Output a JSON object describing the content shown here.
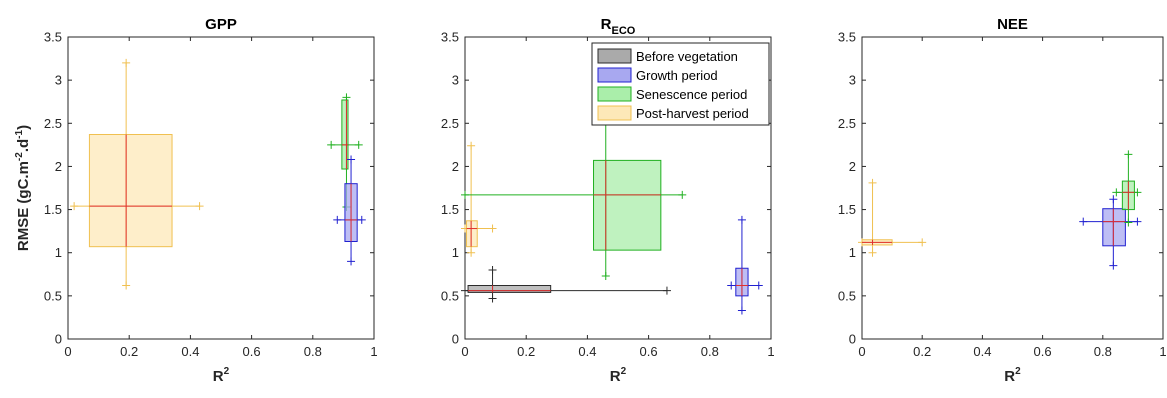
{
  "chart_data": [
    {
      "type": "box",
      "title": "GPP",
      "xlabel": "R",
      "xlabel_sup": "2",
      "ylabel": "RMSE (gC.m",
      "ylabel_sup1": "-2",
      "ylabel_mid": ".d",
      "ylabel_sup2": "-1",
      "ylabel_end": ")",
      "xlim": [
        0,
        1
      ],
      "ylim": [
        0,
        3.5
      ],
      "xticks": [
        "0",
        "0.2",
        "0.4",
        "0.6",
        "0.8",
        "1"
      ],
      "yticks": [
        "0",
        "0.5",
        "1",
        "1.5",
        "2",
        "2.5",
        "3",
        "3.5"
      ],
      "series": [
        {
          "group": "Post-harvest period",
          "x_med": 0.19,
          "y_med": 1.54,
          "x_box": [
            0.07,
            0.34
          ],
          "y_box": [
            1.07,
            2.37
          ],
          "x_whisk": [
            0.02,
            0.43
          ],
          "y_whisk": [
            0.62,
            3.2
          ]
        },
        {
          "group": "Senescence period",
          "x_med": 0.91,
          "y_med": 2.25,
          "x_box": [
            0.895,
            0.915
          ],
          "y_box": [
            1.97,
            2.77
          ],
          "x_whisk": [
            0.86,
            0.95
          ],
          "y_whisk": [
            1.53,
            2.8
          ]
        },
        {
          "group": "Growth period",
          "x_med": 0.925,
          "y_med": 1.38,
          "x_box": [
            0.905,
            0.945
          ],
          "y_box": [
            1.13,
            1.8
          ],
          "x_whisk": [
            0.88,
            0.96
          ],
          "y_whisk": [
            0.9,
            2.08
          ]
        }
      ]
    },
    {
      "type": "box",
      "title": "R",
      "title_sub": "ECO",
      "xlabel": "R",
      "xlabel_sup": "2",
      "xlim": [
        0,
        1
      ],
      "ylim": [
        0,
        3.5
      ],
      "xticks": [
        "0",
        "0.2",
        "0.4",
        "0.6",
        "0.8",
        "1"
      ],
      "yticks": [
        "0",
        "0.5",
        "1",
        "1.5",
        "2",
        "2.5",
        "3",
        "3.5"
      ],
      "series": [
        {
          "group": "Before vegetation",
          "x_med": 0.09,
          "y_med": 0.56,
          "x_box": [
            0.01,
            0.28
          ],
          "y_box": [
            0.54,
            0.62
          ],
          "x_whisk": [
            0.0,
            0.66
          ],
          "y_whisk": [
            0.47,
            0.8
          ]
        },
        {
          "group": "Post-harvest period",
          "x_med": 0.02,
          "y_med": 1.28,
          "x_box": [
            0.005,
            0.04
          ],
          "y_box": [
            1.07,
            1.37
          ],
          "x_whisk": [
            0.0,
            0.09
          ],
          "y_whisk": [
            1.0,
            2.24
          ]
        },
        {
          "group": "Senescence period",
          "x_med": 0.46,
          "y_med": 1.67,
          "x_box": [
            0.42,
            0.64
          ],
          "y_box": [
            1.03,
            2.07
          ],
          "x_whisk": [
            0.0,
            0.71
          ],
          "y_whisk": [
            0.73,
            3.16
          ]
        },
        {
          "group": "Growth period",
          "x_med": 0.905,
          "y_med": 0.62,
          "x_box": [
            0.885,
            0.925
          ],
          "y_box": [
            0.5,
            0.82
          ],
          "x_whisk": [
            0.87,
            0.96
          ],
          "y_whisk": [
            0.33,
            1.38
          ]
        }
      ]
    },
    {
      "type": "box",
      "title": "NEE",
      "xlabel": "R",
      "xlabel_sup": "2",
      "xlim": [
        0,
        1
      ],
      "ylim": [
        0,
        3.5
      ],
      "xticks": [
        "0",
        "0.2",
        "0.4",
        "0.6",
        "0.8",
        "1"
      ],
      "yticks": [
        "0",
        "0.5",
        "1",
        "1.5",
        "2",
        "2.5",
        "3",
        "3.5"
      ],
      "series": [
        {
          "group": "Post-harvest period",
          "x_med": 0.035,
          "y_med": 1.12,
          "x_box": [
            0.0,
            0.1
          ],
          "y_box": [
            1.09,
            1.15
          ],
          "x_whisk": [
            0.0,
            0.2
          ],
          "y_whisk": [
            1.0,
            1.81
          ]
        },
        {
          "group": "Growth period",
          "x_med": 0.835,
          "y_med": 1.36,
          "x_box": [
            0.8,
            0.875
          ],
          "y_box": [
            1.08,
            1.51
          ],
          "x_whisk": [
            0.735,
            0.915
          ],
          "y_whisk": [
            0.85,
            1.62
          ]
        },
        {
          "group": "Senescence period",
          "x_med": 0.885,
          "y_med": 1.7,
          "x_box": [
            0.865,
            0.905
          ],
          "y_box": [
            1.5,
            1.83
          ],
          "x_whisk": [
            0.845,
            0.915
          ],
          "y_whisk": [
            1.35,
            2.14
          ]
        }
      ]
    }
  ],
  "legend": {
    "placement": "top-right",
    "panel": 1,
    "entries": [
      {
        "label": "Before vegetation",
        "fill": "#aaaaaa",
        "edge": "#2b2b2b"
      },
      {
        "label": "Growth period",
        "fill": "#a8a8f0",
        "edge": "#2020d0"
      },
      {
        "label": "Senescence period",
        "fill": "#aaeeaa",
        "edge": "#20b020"
      },
      {
        "label": "Post-harvest period",
        "fill": "#fde8b8",
        "edge": "#f0c050"
      }
    ]
  },
  "colors": {
    "Before vegetation": {
      "fill": "#aaaaaa",
      "edge": "#2b2b2b"
    },
    "Growth period": {
      "fill": "#a8a8f0",
      "edge": "#2020d0"
    },
    "Senescence period": {
      "fill": "#aaeeaa",
      "edge": "#20b020"
    },
    "Post-harvest period": {
      "fill": "#fde8b8",
      "edge": "#f0c050"
    },
    "median": "#e03030",
    "axis": "#262626"
  }
}
